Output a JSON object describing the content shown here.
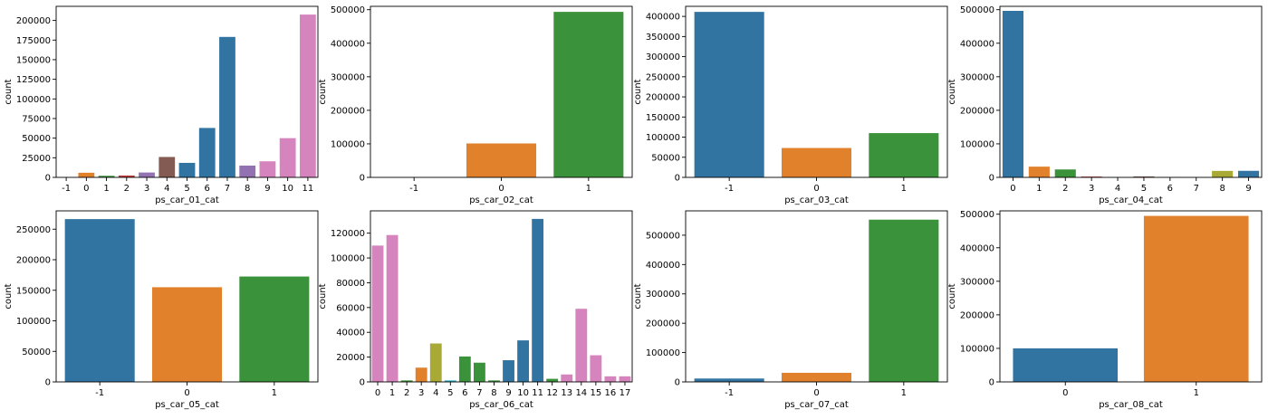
{
  "figure": {
    "layout": "2x4 grid of count plots"
  },
  "palette": [
    "#3274a1",
    "#e1812c",
    "#3a923a",
    "#c03d3e",
    "#9372b2",
    "#845b53",
    "#d684bd",
    "#7f7f7f",
    "#a9aa35",
    "#2eb0c6"
  ],
  "chart_data": [
    {
      "type": "bar",
      "xlabel": "ps_car_01_cat",
      "ylabel": "count",
      "categories": [
        "-1",
        "0",
        "1",
        "2",
        "3",
        "4",
        "5",
        "6",
        "7",
        "8",
        "9",
        "10",
        "11"
      ],
      "values": [
        107,
        5900,
        2000,
        2400,
        6200,
        26000,
        18500,
        63000,
        179000,
        15000,
        20500,
        50000,
        207500
      ],
      "colors": [
        "#3274a1",
        "#e1812c",
        "#3a923a",
        "#c03d3e",
        "#9372b2",
        "#845b53",
        "#3274a1",
        "#3274a1",
        "#3274a1",
        "#9372b2",
        "#d684bd",
        "#d684bd",
        "#d684bd"
      ],
      "ylim": [
        0,
        218000
      ],
      "yticks": [
        0,
        25000,
        50000,
        75000,
        100000,
        125000,
        150000,
        175000,
        200000
      ]
    },
    {
      "type": "bar",
      "xlabel": "ps_car_02_cat",
      "ylabel": "count",
      "categories": [
        "-1",
        "0",
        "1"
      ],
      "values": [
        5,
        101200,
        493500
      ],
      "colors": [
        "#3274a1",
        "#e1812c",
        "#3a923a"
      ],
      "ylim": [
        0,
        510000
      ],
      "yticks": [
        0,
        100000,
        200000,
        300000,
        400000,
        500000
      ]
    },
    {
      "type": "bar",
      "xlabel": "ps_car_03_cat",
      "ylabel": "count",
      "categories": [
        "-1",
        "0",
        "1"
      ],
      "values": [
        411200,
        73000,
        110000
      ],
      "colors": [
        "#3274a1",
        "#e1812c",
        "#3a923a"
      ],
      "ylim": [
        0,
        425000
      ],
      "yticks": [
        0,
        50000,
        100000,
        150000,
        200000,
        250000,
        300000,
        350000,
        400000
      ]
    },
    {
      "type": "bar",
      "xlabel": "ps_car_04_cat",
      "ylabel": "count",
      "categories": [
        "0",
        "1",
        "2",
        "3",
        "4",
        "5",
        "6",
        "7",
        "8",
        "9"
      ],
      "values": [
        496500,
        32000,
        23600,
        2400,
        200,
        2700,
        1100,
        200,
        19300,
        19500
      ],
      "colors": [
        "#3274a1",
        "#e1812c",
        "#3a923a",
        "#c03d3e",
        "#9372b2",
        "#845b53",
        "#d684bd",
        "#7f7f7f",
        "#a9aa35",
        "#3274a1"
      ],
      "ylim": [
        0,
        510000
      ],
      "yticks": [
        0,
        100000,
        200000,
        300000,
        400000,
        500000
      ]
    },
    {
      "type": "bar",
      "xlabel": "ps_car_05_cat",
      "ylabel": "count",
      "categories": [
        "-1",
        "0",
        "1"
      ],
      "values": [
        266500,
        155000,
        172500
      ],
      "colors": [
        "#3274a1",
        "#e1812c",
        "#3a923a"
      ],
      "ylim": [
        0,
        280000
      ],
      "yticks": [
        0,
        50000,
        100000,
        150000,
        200000,
        250000
      ]
    },
    {
      "type": "bar",
      "xlabel": "ps_car_06_cat",
      "ylabel": "count",
      "categories": [
        "0",
        "1",
        "2",
        "3",
        "4",
        "5",
        "6",
        "7",
        "8",
        "9",
        "10",
        "11",
        "12",
        "13",
        "14",
        "15",
        "16",
        "17"
      ],
      "values": [
        110000,
        118500,
        1200,
        11500,
        31000,
        1200,
        20500,
        15500,
        1200,
        17500,
        33500,
        131500,
        2500,
        6000,
        59000,
        21500,
        4500,
        4500
      ],
      "colors": [
        "#d684bd",
        "#d684bd",
        "#3a923a",
        "#e1812c",
        "#a9aa35",
        "#2eb0c6",
        "#3a923a",
        "#3a923a",
        "#3a923a",
        "#3274a1",
        "#3274a1",
        "#3274a1",
        "#3a923a",
        "#d684bd",
        "#d684bd",
        "#d684bd",
        "#d684bd",
        "#d684bd"
      ],
      "ylim": [
        0,
        138000
      ],
      "yticks": [
        0,
        20000,
        40000,
        60000,
        80000,
        100000,
        120000
      ]
    },
    {
      "type": "bar",
      "xlabel": "ps_car_07_cat",
      "ylabel": "count",
      "categories": [
        "-1",
        "0",
        "1"
      ],
      "values": [
        11500,
        31000,
        553000
      ],
      "colors": [
        "#3274a1",
        "#e1812c",
        "#3a923a"
      ],
      "ylim": [
        0,
        583000
      ],
      "yticks": [
        0,
        100000,
        200000,
        300000,
        400000,
        500000
      ]
    },
    {
      "type": "bar",
      "xlabel": "ps_car_08_cat",
      "ylabel": "count",
      "categories": [
        "0",
        "1"
      ],
      "values": [
        100000,
        495000
      ],
      "colors": [
        "#3274a1",
        "#e1812c"
      ],
      "ylim": [
        0,
        510000
      ],
      "yticks": [
        0,
        100000,
        200000,
        300000,
        400000,
        500000
      ]
    }
  ]
}
